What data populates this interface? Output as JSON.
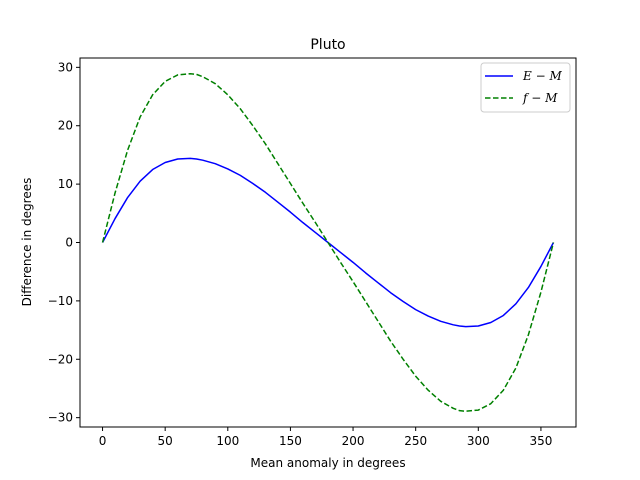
{
  "chart_data": {
    "type": "line",
    "title": "Pluto",
    "xlabel": "Mean anomaly in degrees",
    "ylabel": "Difference in degrees",
    "xlim": [
      -18,
      378
    ],
    "ylim": [
      -31.6,
      31.6
    ],
    "xticks": [
      0,
      50,
      100,
      150,
      200,
      250,
      300,
      350
    ],
    "yticks": [
      -30,
      -20,
      -10,
      0,
      10,
      20,
      30
    ],
    "grid": false,
    "legend_position": "top-right",
    "x": [
      0,
      10,
      20,
      30,
      40,
      50,
      60,
      70,
      75,
      80,
      90,
      100,
      110,
      120,
      130,
      140,
      150,
      160,
      170,
      180,
      190,
      200,
      210,
      220,
      230,
      240,
      250,
      260,
      270,
      280,
      285,
      290,
      300,
      310,
      320,
      330,
      340,
      350,
      360
    ],
    "series": [
      {
        "name": "E − M",
        "color": "#0000ff",
        "style": "solid",
        "values": [
          0,
          4.1,
          7.7,
          10.5,
          12.5,
          13.7,
          14.3,
          14.4,
          14.3,
          14.1,
          13.5,
          12.6,
          11.5,
          10.1,
          8.6,
          6.9,
          5.2,
          3.4,
          1.7,
          0,
          -1.7,
          -3.4,
          -5.2,
          -6.9,
          -8.6,
          -10.1,
          -11.5,
          -12.6,
          -13.5,
          -14.1,
          -14.3,
          -14.4,
          -14.3,
          -13.7,
          -12.5,
          -10.5,
          -7.7,
          -4.1,
          0
        ]
      },
      {
        "name": "f − M",
        "color": "#008000",
        "style": "dashed",
        "values": [
          0,
          8.5,
          15.8,
          21.5,
          25.3,
          27.6,
          28.7,
          28.9,
          28.8,
          28.4,
          27.2,
          25.3,
          22.9,
          20.0,
          16.9,
          13.5,
          10.1,
          6.7,
          3.4,
          0,
          -3.4,
          -6.7,
          -10.1,
          -13.5,
          -16.9,
          -20.0,
          -22.9,
          -25.3,
          -27.2,
          -28.4,
          -28.8,
          -28.9,
          -28.7,
          -27.6,
          -25.3,
          -21.5,
          -15.8,
          -8.5,
          0
        ]
      }
    ]
  }
}
